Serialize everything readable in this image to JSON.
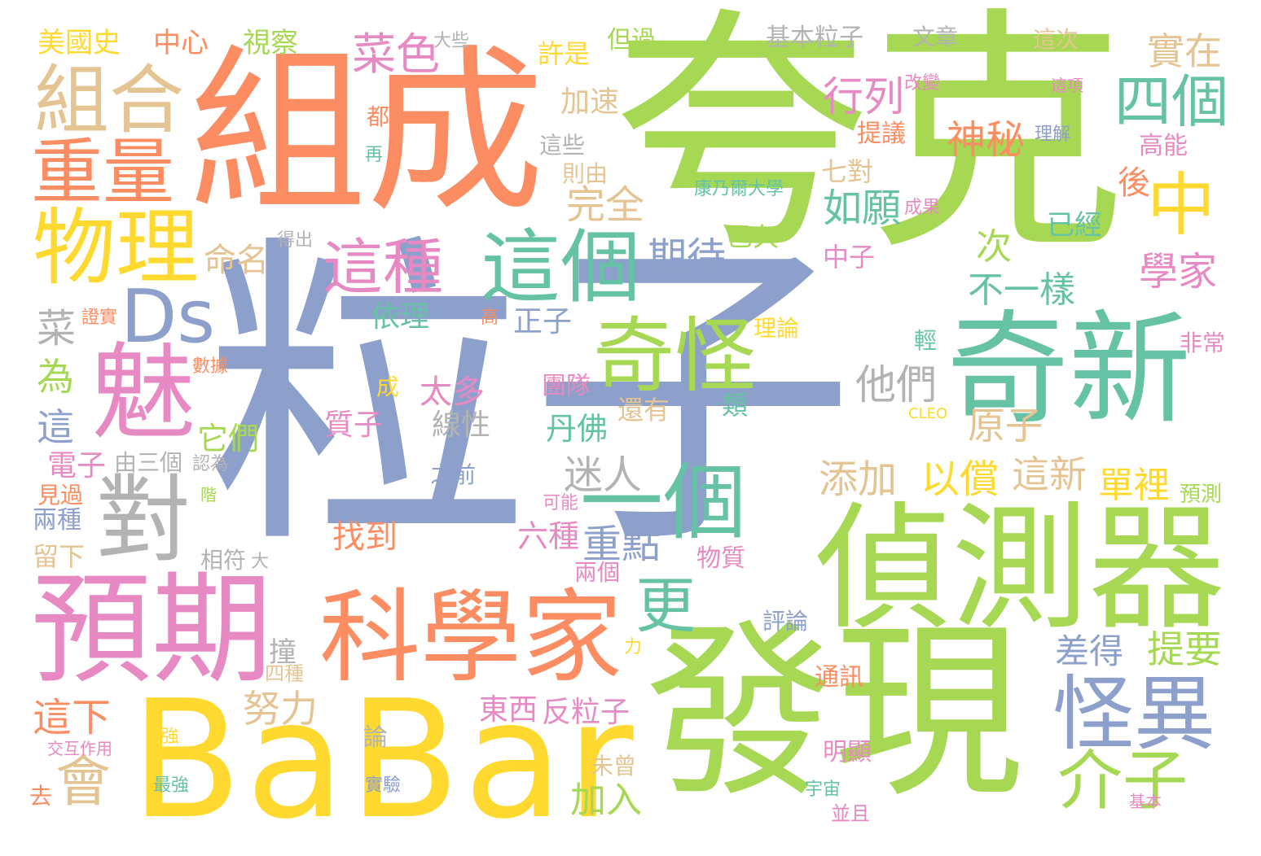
{
  "palette": {
    "green": "#a6d854",
    "salmon": "#fc8d62",
    "blue": "#8da0cb",
    "pink": "#e78ac3",
    "yellow": "#ffd92f",
    "tan": "#e5c494",
    "teal": "#66c2a5",
    "gray": "#b3b3b3"
  },
  "words": [
    {
      "text": "粒子",
      "color": "blue"
    },
    {
      "text": "夸克",
      "color": "green"
    },
    {
      "text": "組成",
      "color": "salmon"
    },
    {
      "text": "發現",
      "color": "green"
    },
    {
      "text": "BaBar",
      "color": "yellow"
    },
    {
      "text": "偵測器",
      "color": "green"
    },
    {
      "text": "奇新",
      "color": "teal"
    },
    {
      "text": "預期",
      "color": "pink"
    },
    {
      "text": "科學家",
      "color": "salmon"
    },
    {
      "text": "魅",
      "color": "pink"
    },
    {
      "text": "對",
      "color": "gray"
    },
    {
      "text": "Ds",
      "color": "blue"
    },
    {
      "text": "物理",
      "color": "yellow"
    },
    {
      "text": "組合",
      "color": "tan"
    },
    {
      "text": "重量",
      "color": "salmon"
    },
    {
      "text": "這個",
      "color": "teal"
    },
    {
      "text": "奇怪",
      "color": "green"
    },
    {
      "text": "一個",
      "color": "teal"
    },
    {
      "text": "怪異",
      "color": "blue"
    },
    {
      "text": "這種",
      "color": "pink"
    },
    {
      "text": "菜色",
      "color": "pink"
    },
    {
      "text": "四個",
      "color": "teal"
    },
    {
      "text": "中",
      "color": "yellow"
    },
    {
      "text": "介子",
      "color": "green"
    },
    {
      "text": "更",
      "color": "teal"
    },
    {
      "text": "會",
      "color": "tan"
    },
    {
      "text": "神秘",
      "color": "salmon"
    },
    {
      "text": "實在",
      "color": "tan"
    },
    {
      "text": "學家",
      "color": "pink"
    },
    {
      "text": "行列",
      "color": "pink"
    },
    {
      "text": "如願",
      "color": "teal"
    },
    {
      "text": "期待",
      "color": "blue"
    },
    {
      "text": "完全",
      "color": "tan"
    },
    {
      "text": "不一樣",
      "color": "teal"
    },
    {
      "text": "他們",
      "color": "gray"
    },
    {
      "text": "原子",
      "color": "tan"
    },
    {
      "text": "這新",
      "color": "tan"
    },
    {
      "text": "以償",
      "color": "yellow"
    },
    {
      "text": "添加",
      "color": "tan"
    },
    {
      "text": "單裡",
      "color": "yellow"
    },
    {
      "text": "迷人",
      "color": "gray"
    },
    {
      "text": "重點",
      "color": "blue"
    },
    {
      "text": "太多",
      "color": "pink"
    },
    {
      "text": "線性",
      "color": "gray"
    },
    {
      "text": "丹佛",
      "color": "teal"
    },
    {
      "text": "質子",
      "color": "pink"
    },
    {
      "text": "它們",
      "color": "green"
    },
    {
      "text": "電子",
      "color": "pink"
    },
    {
      "text": "命名",
      "color": "tan"
    },
    {
      "text": "依理",
      "color": "teal"
    },
    {
      "text": "正子",
      "color": "blue"
    },
    {
      "text": "這",
      "color": "blue"
    },
    {
      "text": "為",
      "color": "green"
    },
    {
      "text": "菜",
      "color": "gray"
    },
    {
      "text": "差得",
      "color": "blue"
    },
    {
      "text": "提要",
      "color": "green"
    },
    {
      "text": "努力",
      "color": "tan"
    },
    {
      "text": "這下",
      "color": "salmon"
    },
    {
      "text": "東西",
      "color": "pink"
    },
    {
      "text": "反粒子",
      "color": "pink"
    },
    {
      "text": "加入",
      "color": "green"
    },
    {
      "text": "找到",
      "color": "salmon"
    },
    {
      "text": "六種",
      "color": "pink"
    },
    {
      "text": "美國史",
      "color": "yellow"
    },
    {
      "text": "中心",
      "color": "salmon"
    },
    {
      "text": "視察",
      "color": "green"
    },
    {
      "text": "大些",
      "color": "gray"
    },
    {
      "text": "許是",
      "color": "yellow"
    },
    {
      "text": "但過",
      "color": "green"
    },
    {
      "text": "基本粒子",
      "color": "gray"
    },
    {
      "text": "文章",
      "color": "gray"
    },
    {
      "text": "這次",
      "color": "tan"
    },
    {
      "text": "改變",
      "color": "pink"
    },
    {
      "text": "這項",
      "color": "pink"
    },
    {
      "text": "加速",
      "color": "tan"
    },
    {
      "text": "都",
      "color": "salmon"
    },
    {
      "text": "這些",
      "color": "gray"
    },
    {
      "text": "則由",
      "color": "tan"
    },
    {
      "text": "再",
      "color": "teal"
    },
    {
      "text": "提議",
      "color": "salmon"
    },
    {
      "text": "理解",
      "color": "blue"
    },
    {
      "text": "高能",
      "color": "pink"
    },
    {
      "text": "七對",
      "color": "tan"
    },
    {
      "text": "後",
      "color": "salmon"
    },
    {
      "text": "康乃爾大學",
      "color": "teal"
    },
    {
      "text": "成果",
      "color": "pink"
    },
    {
      "text": "已經",
      "color": "teal"
    },
    {
      "text": "得出",
      "color": "gray"
    },
    {
      "text": "已久",
      "color": "green"
    },
    {
      "text": "中子",
      "color": "pink"
    },
    {
      "text": "次",
      "color": "green"
    },
    {
      "text": "證實",
      "color": "salmon"
    },
    {
      "text": "高",
      "color": "salmon"
    },
    {
      "text": "理論",
      "color": "yellow"
    },
    {
      "text": "輕",
      "color": "teal"
    },
    {
      "text": "非常",
      "color": "pink"
    },
    {
      "text": "數據",
      "color": "salmon"
    },
    {
      "text": "成",
      "color": "yellow"
    },
    {
      "text": "團隊",
      "color": "pink"
    },
    {
      "text": "還有",
      "color": "tan"
    },
    {
      "text": "類",
      "color": "teal"
    },
    {
      "text": "CLEO",
      "color": "yellow"
    },
    {
      "text": "由三個",
      "color": "gray"
    },
    {
      "text": "認為",
      "color": "gray"
    },
    {
      "text": "之前",
      "color": "blue"
    },
    {
      "text": "見過",
      "color": "salmon"
    },
    {
      "text": "階",
      "color": "green"
    },
    {
      "text": "可能",
      "color": "pink"
    },
    {
      "text": "預測",
      "color": "green"
    },
    {
      "text": "兩種",
      "color": "blue"
    },
    {
      "text": "留下",
      "color": "tan"
    },
    {
      "text": "相符",
      "color": "gray"
    },
    {
      "text": "大",
      "color": "gray"
    },
    {
      "text": "兩個",
      "color": "pink"
    },
    {
      "text": "物質",
      "color": "pink"
    },
    {
      "text": "撞",
      "color": "gray"
    },
    {
      "text": "評論",
      "color": "blue"
    },
    {
      "text": "四種",
      "color": "tan"
    },
    {
      "text": "力",
      "color": "yellow"
    },
    {
      "text": "通訊",
      "color": "salmon"
    },
    {
      "text": "論",
      "color": "gray"
    },
    {
      "text": "強",
      "color": "yellow"
    },
    {
      "text": "交互作用",
      "color": "pink"
    },
    {
      "text": "未曾",
      "color": "tan"
    },
    {
      "text": "明顯",
      "color": "pink"
    },
    {
      "text": "最強",
      "color": "teal"
    },
    {
      "text": "實驗",
      "color": "blue"
    },
    {
      "text": "宇宙",
      "color": "teal"
    },
    {
      "text": "去",
      "color": "salmon"
    },
    {
      "text": "基本",
      "color": "pink"
    },
    {
      "text": "並且",
      "color": "pink"
    }
  ]
}
